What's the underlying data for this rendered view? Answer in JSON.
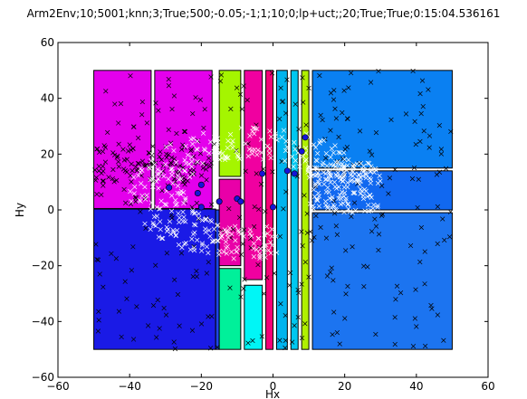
{
  "chart_data": {
    "type": "scatter",
    "title": "Arm2Env;10;5001;knn;3;True;500;-0.05;-1;1;10;0;lp+uct;;20;True;True;0:15:04.536161",
    "xlabel": "Hx",
    "ylabel": "Hy",
    "xlim": [
      -60,
      60
    ],
    "ylim": [
      -60,
      60
    ],
    "xticks": [
      "-60",
      "-40",
      "-20",
      "0",
      "20",
      "40",
      "60"
    ],
    "yticks": [
      "-60",
      "-40",
      "-20",
      "0",
      "20",
      "40",
      "60"
    ],
    "grid": false,
    "regions": [
      {
        "x0": -50,
        "x1": -34,
        "y0": 0.5,
        "y1": 50,
        "color": "#e400ec"
      },
      {
        "x0": -33,
        "x1": -17,
        "y0": 0.5,
        "y1": 50,
        "color": "#e400ec"
      },
      {
        "x0": -50,
        "x1": -16,
        "y0": -50,
        "y1": 0.3,
        "color": "#1a1ae6"
      },
      {
        "x0": -16,
        "x1": -15,
        "y0": -50,
        "y1": 0,
        "color": "#1e44e8"
      },
      {
        "x0": -15,
        "x1": -9,
        "y0": 12,
        "y1": 50,
        "color": "#a5f500"
      },
      {
        "x0": -15,
        "x1": -9,
        "y0": -20,
        "y1": 11,
        "color": "#e900a8"
      },
      {
        "x0": -15,
        "x1": -9,
        "y0": -50,
        "y1": -21,
        "color": "#00f09a"
      },
      {
        "x0": -8,
        "x1": -3,
        "y0": -25,
        "y1": 50,
        "color": "#f000a0"
      },
      {
        "x0": -8,
        "x1": -3,
        "y0": -50,
        "y1": -27,
        "color": "#00f6f6"
      },
      {
        "x0": -2,
        "x1": 0,
        "y0": -50,
        "y1": 50,
        "color": "#f50078"
      },
      {
        "x0": 1,
        "x1": 4,
        "y0": -50,
        "y1": 50,
        "color": "#00b4ee"
      },
      {
        "x0": 5,
        "x1": 7,
        "y0": -50,
        "y1": 50,
        "color": "#00c8f0"
      },
      {
        "x0": 8,
        "x1": 10,
        "y0": -50,
        "y1": 50,
        "color": "#b0f000"
      },
      {
        "x0": 11,
        "x1": 50,
        "y0": 15,
        "y1": 50,
        "color": "#0a80f2"
      },
      {
        "x0": 11,
        "x1": 50,
        "y0": 0,
        "y1": 14,
        "color": "#1168f0"
      },
      {
        "x0": 11,
        "x1": 50,
        "y0": -50,
        "y1": -1,
        "color": "#1c74f0"
      }
    ],
    "series": [
      {
        "marker": "x",
        "color": "#000000",
        "count": 420
      },
      {
        "marker": "x",
        "color": "#ffffff",
        "count": 500
      },
      {
        "marker": "o",
        "color": "#1515d8",
        "points": [
          [
            -29,
            8
          ],
          [
            -20,
            9
          ],
          [
            -21,
            6
          ],
          [
            -20,
            1
          ],
          [
            -15,
            3
          ],
          [
            -10,
            4
          ],
          [
            -9,
            3
          ],
          [
            -3,
            13
          ],
          [
            0,
            1
          ],
          [
            4,
            14
          ],
          [
            6,
            13
          ],
          [
            8,
            21
          ],
          [
            9,
            26
          ]
        ]
      }
    ]
  }
}
